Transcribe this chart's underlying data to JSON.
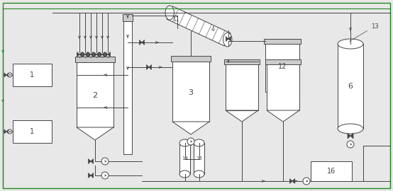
{
  "bg_color": "#e8e8e8",
  "line_color": "#444444",
  "lw": 0.7,
  "fig_w": 5.54,
  "fig_h": 2.7,
  "dpi": 100
}
